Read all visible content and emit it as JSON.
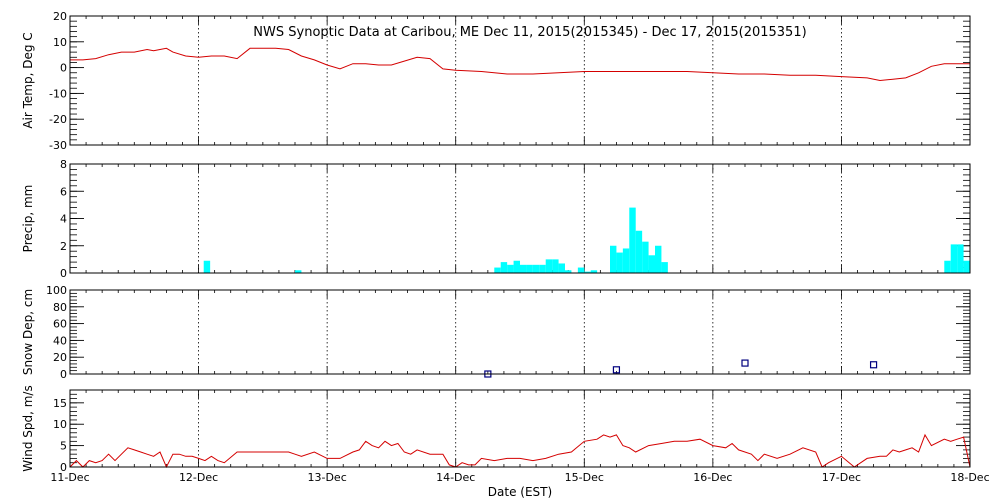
{
  "title": "NWS Synoptic Data at Caribou, ME   Dec 11, 2015(2015345) - Dec 17, 2015(2015351)",
  "xlabel": "Date (EST)",
  "x_ticks": [
    "11-Dec",
    "12-Dec",
    "13-Dec",
    "14-Dec",
    "15-Dec",
    "16-Dec",
    "17-Dec",
    "18-Dec"
  ],
  "colors": {
    "temp": "#d40000",
    "precip": "#00ffff",
    "snow": "#00007f",
    "wind": "#d40000",
    "axis": "#000000"
  },
  "chart_data": [
    {
      "type": "line",
      "ylabel": "Air Temp, Deg C",
      "ylim": [
        -30,
        20
      ],
      "yticks": [
        -30,
        -20,
        -10,
        0,
        10,
        20
      ],
      "xlim": [
        0,
        7
      ],
      "grid": true,
      "series": [
        {
          "x": [
            0,
            0.1,
            0.2,
            0.3,
            0.4,
            0.5,
            0.6,
            0.65,
            0.7,
            0.75,
            0.8,
            0.9,
            1.0,
            1.1,
            1.2,
            1.3,
            1.4,
            1.5,
            1.6,
            1.7,
            1.8,
            1.9,
            2.0,
            2.1,
            2.2,
            2.3,
            2.4,
            2.5,
            2.6,
            2.7,
            2.8,
            2.9,
            3.0,
            3.2,
            3.4,
            3.6,
            3.8,
            4.0,
            4.2,
            4.4,
            4.6,
            4.8,
            5.0,
            5.2,
            5.4,
            5.6,
            5.8,
            6.0,
            6.2,
            6.3,
            6.4,
            6.5,
            6.6,
            6.7,
            6.8,
            6.9,
            7.0
          ],
          "values": [
            3,
            3,
            3.5,
            5,
            6,
            6,
            7,
            6.5,
            7,
            7.5,
            6,
            4.5,
            4,
            4.5,
            4.5,
            3.5,
            7.5,
            7.5,
            7.5,
            7,
            4.5,
            3,
            1,
            -0.5,
            1.5,
            1.5,
            1,
            1,
            2.5,
            4,
            3.5,
            -0.5,
            -1,
            -1.5,
            -2.5,
            -2.5,
            -2,
            -1.5,
            -1.5,
            -1.5,
            -1.5,
            -1.5,
            -2,
            -2.5,
            -2.5,
            -3,
            -3,
            -3.5,
            -4,
            -5,
            -4.5,
            -4,
            -2,
            0.5,
            1.5,
            1.5,
            1.5
          ]
        }
      ]
    },
    {
      "type": "bar",
      "ylabel": "Precip, mm",
      "ylim": [
        0,
        8
      ],
      "yticks": [
        0,
        2,
        4,
        6,
        8
      ],
      "xlim": [
        0,
        7
      ],
      "grid": true,
      "x": [
        1.04,
        1.75,
        3.3,
        3.35,
        3.4,
        3.45,
        3.5,
        3.55,
        3.6,
        3.65,
        3.7,
        3.75,
        3.8,
        3.85,
        3.95,
        4.0,
        4.05,
        4.2,
        4.25,
        4.3,
        4.35,
        4.4,
        4.45,
        4.5,
        4.55,
        4.6,
        6.8,
        6.85,
        6.9,
        6.95
      ],
      "values": [
        0.9,
        0.2,
        0.4,
        0.8,
        0.6,
        0.9,
        0.6,
        0.6,
        0.6,
        0.6,
        1.0,
        1.0,
        0.7,
        0.2,
        0.4,
        0.1,
        0.2,
        2.0,
        1.5,
        1.8,
        4.8,
        3.1,
        2.3,
        1.3,
        2.0,
        0.8,
        0.9,
        2.1,
        2.1,
        0.9
      ]
    },
    {
      "type": "scatter",
      "ylabel": "Snow Dep, cm",
      "ylim": [
        0,
        100
      ],
      "yticks": [
        0,
        20,
        40,
        60,
        80,
        100
      ],
      "xlim": [
        0,
        7
      ],
      "grid": true,
      "x": [
        3.25,
        4.25,
        5.25,
        6.25
      ],
      "values": [
        0,
        5,
        13,
        11
      ]
    },
    {
      "type": "line",
      "ylabel": "Wind Spd, m/s",
      "ylim": [
        0,
        18
      ],
      "yticks": [
        0,
        5,
        10,
        15
      ],
      "xlim": [
        0,
        7
      ],
      "grid": true,
      "series": [
        {
          "x": [
            0,
            0.05,
            0.1,
            0.15,
            0.2,
            0.25,
            0.3,
            0.35,
            0.4,
            0.45,
            0.5,
            0.55,
            0.6,
            0.65,
            0.7,
            0.75,
            0.8,
            0.85,
            0.9,
            0.95,
            1.0,
            1.05,
            1.1,
            1.15,
            1.2,
            1.3,
            1.4,
            1.5,
            1.6,
            1.7,
            1.75,
            1.8,
            1.9,
            2.0,
            2.1,
            2.2,
            2.25,
            2.3,
            2.35,
            2.4,
            2.45,
            2.5,
            2.55,
            2.6,
            2.65,
            2.7,
            2.8,
            2.9,
            2.95,
            3.0,
            3.05,
            3.1,
            3.15,
            3.2,
            3.3,
            3.4,
            3.5,
            3.6,
            3.7,
            3.8,
            3.9,
            4.0,
            4.1,
            4.15,
            4.2,
            4.25,
            4.3,
            4.35,
            4.4,
            4.5,
            4.6,
            4.7,
            4.8,
            4.9,
            5.0,
            5.1,
            5.15,
            5.2,
            5.3,
            5.35,
            5.4,
            5.5,
            5.6,
            5.7,
            5.8,
            5.85,
            5.9,
            6.0,
            6.1,
            6.2,
            6.3,
            6.35,
            6.4,
            6.45,
            6.5,
            6.55,
            6.6,
            6.65,
            6.7,
            6.8,
            6.85,
            6.9,
            6.95,
            7.0
          ],
          "values": [
            0,
            1.5,
            0,
            1.5,
            1,
            1.5,
            3,
            1.5,
            3,
            4.5,
            4,
            3.5,
            3,
            2.5,
            3.5,
            0,
            3,
            3,
            2.5,
            2.5,
            2,
            1.5,
            2.5,
            1.5,
            1,
            3.5,
            3.5,
            3.5,
            3.5,
            3.5,
            3,
            2.5,
            3.5,
            2,
            2,
            3.5,
            4,
            6,
            5,
            4.5,
            6,
            5,
            5.5,
            3.5,
            3,
            4,
            3,
            3,
            0.5,
            0,
            1,
            0.5,
            0.5,
            2,
            1.5,
            2,
            2,
            1.5,
            2,
            3,
            3.5,
            6,
            6.5,
            7.5,
            7,
            7.5,
            5,
            4.5,
            3.5,
            5,
            5.5,
            6,
            6,
            6.5,
            5,
            4.5,
            5.5,
            4,
            3,
            1.5,
            3,
            2,
            3,
            4.5,
            3.5,
            0,
            1,
            2.5,
            0,
            2,
            2.5,
            2.5,
            4,
            3.5,
            4,
            4.5,
            3.5,
            7.5,
            5,
            6.5,
            6,
            6.5,
            7,
            0
          ]
        }
      ]
    }
  ]
}
